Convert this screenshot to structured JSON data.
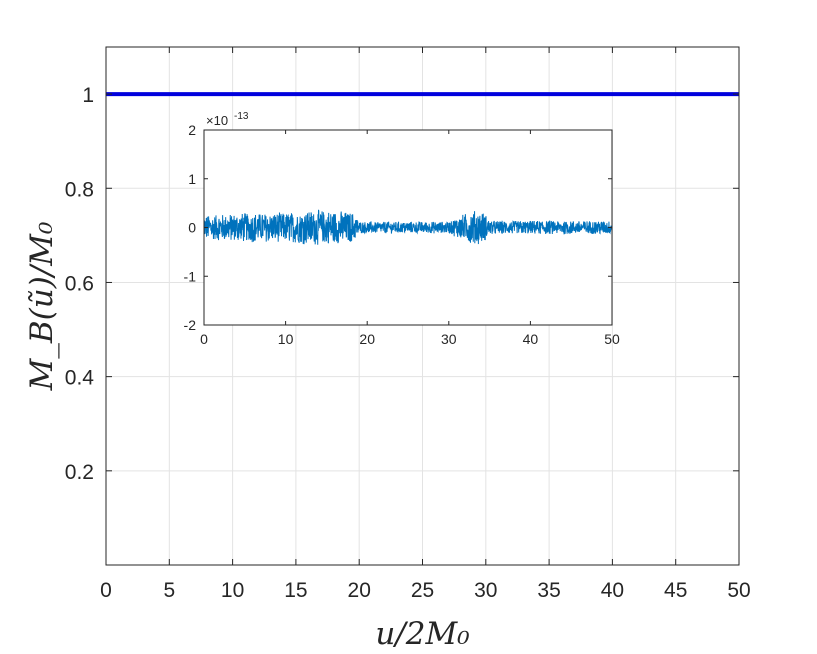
{
  "chart_data": [
    {
      "type": "line",
      "xlabel": "u/2M₀",
      "ylabel": "M_B(ũ)/M₀",
      "xlim": [
        0,
        50
      ],
      "ylim": [
        0,
        1.1
      ],
      "xticks": [
        0,
        5,
        10,
        15,
        20,
        25,
        30,
        35,
        40,
        45,
        50
      ],
      "yticks": [
        0.2,
        0.4,
        0.6,
        0.8,
        1
      ],
      "xtick_labels": [
        "0",
        "5",
        "10",
        "15",
        "20",
        "25",
        "30",
        "35",
        "40",
        "45",
        "50"
      ],
      "ytick_labels": [
        "0.2",
        "0.4",
        "0.6",
        "0.8",
        "1"
      ],
      "grid": true,
      "series": [
        {
          "x": [
            0,
            50
          ],
          "y": [
            1,
            1
          ],
          "color": "#0000dd"
        }
      ]
    },
    {
      "type": "line",
      "subtype": "inset",
      "xlim": [
        0,
        50
      ],
      "ylim": [
        -2,
        2
      ],
      "y_exponent_label": "×10",
      "y_exponent": "-13",
      "xticks": [
        0,
        10,
        20,
        30,
        40,
        50
      ],
      "yticks": [
        -2,
        -1,
        0,
        1,
        2
      ],
      "xtick_labels": [
        "0",
        "10",
        "20",
        "30",
        "40",
        "50"
      ],
      "ytick_labels": [
        "-2",
        "-1",
        "0",
        "1",
        "2"
      ],
      "grid": false,
      "series": [
        {
          "color": "#0072bd",
          "noise_envelope": {
            "x": [
              0,
              5,
              10,
              13,
              16,
              18.5,
              19,
              25,
              30,
              31.5,
              33,
              34.5,
              35,
              40,
              45,
              50
            ],
            "amplitude": [
              0.25,
              0.3,
              0.3,
              0.35,
              0.35,
              0.3,
              0.12,
              0.12,
              0.12,
              0.25,
              0.35,
              0.3,
              0.14,
              0.14,
              0.14,
              0.14
            ]
          }
        }
      ]
    }
  ]
}
